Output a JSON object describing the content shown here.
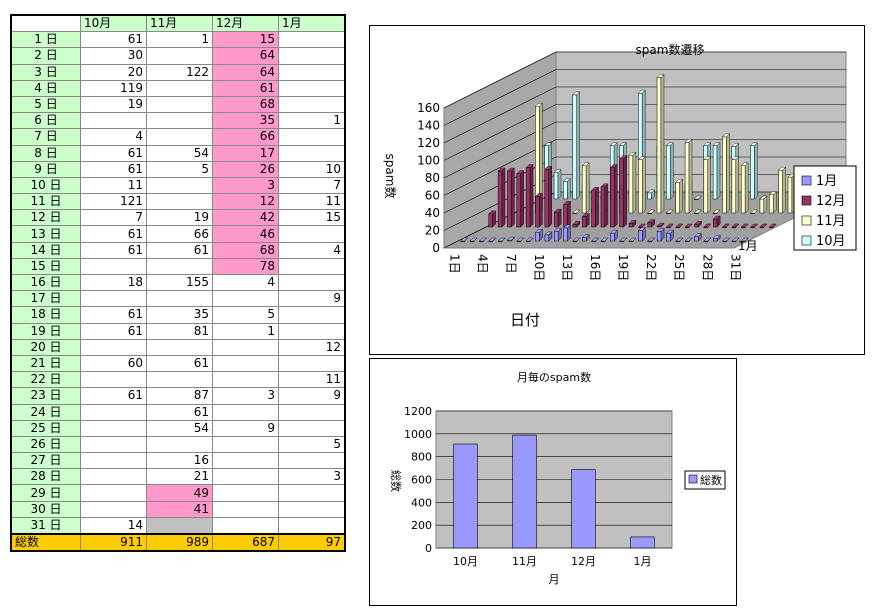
{
  "table": {
    "headers": [
      "",
      "10月",
      "11月",
      "12月",
      "1月"
    ],
    "rows": [
      [
        "1 日",
        "61",
        "1",
        "15",
        ""
      ],
      [
        "2 日",
        "30",
        "",
        "64",
        ""
      ],
      [
        "3 日",
        "20",
        "122",
        "64",
        ""
      ],
      [
        "4 日",
        "119",
        "",
        "61",
        ""
      ],
      [
        "5 日",
        "19",
        "",
        "68",
        ""
      ],
      [
        "6 日",
        "",
        "",
        "35",
        "1"
      ],
      [
        "7 日",
        "4",
        "",
        "66",
        ""
      ],
      [
        "8 日",
        "61",
        "54",
        "17",
        ""
      ],
      [
        "9 日",
        "61",
        "5",
        "26",
        "10"
      ],
      [
        "10 日",
        "11",
        "",
        "3",
        "7"
      ],
      [
        "11 日",
        "121",
        "",
        "12",
        "11"
      ],
      [
        "12 日",
        "7",
        "19",
        "42",
        "15"
      ],
      [
        "13 日",
        "61",
        "66",
        "46",
        ""
      ],
      [
        "14 日",
        "61",
        "61",
        "68",
        "4"
      ],
      [
        "15 日",
        "",
        "",
        "78",
        ""
      ],
      [
        "16 日",
        "18",
        "155",
        "4",
        ""
      ],
      [
        "17 日",
        "",
        "",
        "",
        "9"
      ],
      [
        "18 日",
        "61",
        "35",
        "5",
        ""
      ],
      [
        "19 日",
        "61",
        "81",
        "1",
        ""
      ],
      [
        "20 日",
        "",
        "",
        "",
        "12"
      ],
      [
        "21 日",
        "60",
        "61",
        "",
        ""
      ],
      [
        "22 日",
        "",
        "",
        "",
        "11"
      ],
      [
        "23 日",
        "61",
        "87",
        "3",
        "9"
      ],
      [
        "24 日",
        "",
        "61",
        "",
        ""
      ],
      [
        "25 日",
        "",
        "54",
        "9",
        ""
      ],
      [
        "26 日",
        "",
        "",
        "",
        "5"
      ],
      [
        "27 日",
        "",
        "16",
        "",
        ""
      ],
      [
        "28 日",
        "",
        "21",
        "",
        "3"
      ],
      [
        "29 日",
        "",
        "49",
        "",
        ""
      ],
      [
        "30 日",
        "",
        "41",
        "",
        ""
      ],
      [
        "31 日",
        "14",
        "",
        "",
        ""
      ]
    ],
    "pink_cells": {
      "3": [
        1,
        2,
        3,
        4,
        5,
        6,
        7,
        8,
        9,
        10,
        11,
        12,
        13,
        14,
        15
      ],
      "2": [
        29,
        30
      ]
    },
    "gray_cells": {
      "2": [
        31
      ]
    },
    "total": [
      "総数",
      "911",
      "989",
      "687",
      "97"
    ],
    "colors": {
      "header_bg": "#ccffcc",
      "highlight": "#ff99cc",
      "total_bg": "#ffcc00",
      "blank": "#c0c0c0"
    }
  },
  "chart_data": [
    {
      "type": "bar",
      "style": "3d-column",
      "title": "spam数遷移",
      "xlabel": "日付",
      "ylabel": "spam数",
      "ylim": [
        0,
        160
      ],
      "yticks": [
        "0",
        "20",
        "40",
        "60",
        "80",
        "100",
        "120",
        "140",
        "160"
      ],
      "x_tick_labels": [
        "1日",
        "4日",
        "7日",
        "10日",
        "13日",
        "16日",
        "19日",
        "22日",
        "25日",
        "28日",
        "31日"
      ],
      "depth_label": "1月",
      "categories": [
        "1",
        "2",
        "3",
        "4",
        "5",
        "6",
        "7",
        "8",
        "9",
        "10",
        "11",
        "12",
        "13",
        "14",
        "15",
        "16",
        "17",
        "18",
        "19",
        "20",
        "21",
        "22",
        "23",
        "24",
        "25",
        "26",
        "27",
        "28",
        "29",
        "30",
        "31"
      ],
      "series": [
        {
          "name": "1月",
          "color": "#9999ff",
          "values": [
            0,
            0,
            0,
            0,
            0,
            1,
            0,
            0,
            10,
            7,
            11,
            15,
            0,
            4,
            0,
            0,
            9,
            0,
            0,
            12,
            0,
            11,
            9,
            0,
            0,
            5,
            0,
            3,
            0,
            0,
            0
          ]
        },
        {
          "name": "12月",
          "color": "#993366",
          "values": [
            15,
            64,
            64,
            61,
            68,
            35,
            66,
            17,
            26,
            3,
            12,
            42,
            46,
            68,
            78,
            4,
            0,
            5,
            1,
            0,
            0,
            0,
            3,
            0,
            9,
            0,
            0,
            0,
            0,
            0,
            0
          ]
        },
        {
          "name": "11月",
          "color": "#ffffcc",
          "values": [
            1,
            0,
            122,
            0,
            0,
            0,
            0,
            54,
            5,
            0,
            0,
            19,
            66,
            61,
            0,
            155,
            0,
            35,
            81,
            0,
            61,
            0,
            87,
            61,
            54,
            0,
            16,
            21,
            49,
            41,
            0
          ]
        },
        {
          "name": "10月",
          "color": "#ccffff",
          "values": [
            61,
            30,
            20,
            119,
            19,
            0,
            4,
            61,
            61,
            11,
            121,
            7,
            61,
            61,
            0,
            18,
            0,
            61,
            61,
            0,
            60,
            0,
            61,
            0,
            0,
            0,
            0,
            0,
            0,
            0,
            14
          ]
        }
      ],
      "legend": "right",
      "plot_bg": "#c0c0c0"
    },
    {
      "type": "bar",
      "title": "月毎のspam数",
      "xlabel": "月",
      "ylabel": "総数",
      "ylim": [
        0,
        1200
      ],
      "yticks": [
        "0",
        "200",
        "400",
        "600",
        "800",
        "1000",
        "1200"
      ],
      "categories": [
        "10月",
        "11月",
        "12月",
        "1月"
      ],
      "series": [
        {
          "name": "総数",
          "color": "#9999ff",
          "values": [
            911,
            989,
            687,
            97
          ]
        }
      ],
      "legend": "right",
      "plot_bg": "#c0c0c0"
    }
  ]
}
